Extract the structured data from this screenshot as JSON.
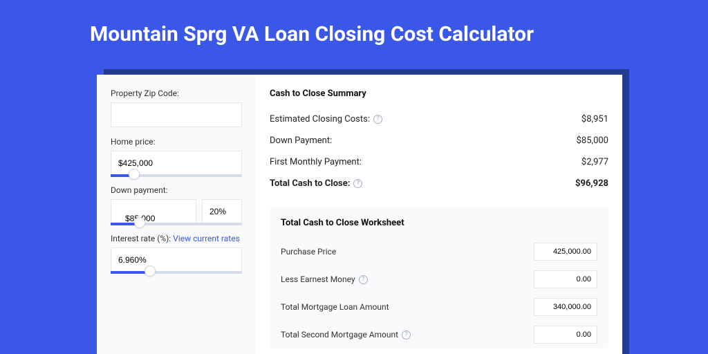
{
  "page": {
    "title": "Mountain Sprg VA Loan Closing Cost Calculator",
    "background_color": "#3a57e8"
  },
  "form": {
    "zip": {
      "label": "Property Zip Code:",
      "value": ""
    },
    "home_price": {
      "label": "Home price:",
      "value": "$425,000",
      "slider_pct": 18
    },
    "down_payment": {
      "label": "Down payment:",
      "value": "$85,000",
      "percent": "20%",
      "slider_pct": 22
    },
    "interest_rate": {
      "label": "Interest rate (%):",
      "link_text": "View current rates",
      "value": "6.960%",
      "slider_pct": 30
    }
  },
  "summary": {
    "title": "Cash to Close Summary",
    "rows": [
      {
        "label": "Estimated Closing Costs:",
        "help": true,
        "value": "$8,951"
      },
      {
        "label": "Down Payment:",
        "help": false,
        "value": "$85,000"
      },
      {
        "label": "First Monthly Payment:",
        "help": false,
        "value": "$2,977"
      }
    ],
    "total": {
      "label": "Total Cash to Close:",
      "help": true,
      "value": "$96,928"
    }
  },
  "worksheet": {
    "title": "Total Cash to Close Worksheet",
    "rows": [
      {
        "label": "Purchase Price",
        "help": false,
        "value": "425,000.00"
      },
      {
        "label": "Less Earnest Money",
        "help": true,
        "value": "0.00"
      },
      {
        "label": "Total Mortgage Loan Amount",
        "help": false,
        "value": "340,000.00"
      },
      {
        "label": "Total Second Mortgage Amount",
        "help": true,
        "value": "0.00"
      }
    ]
  }
}
